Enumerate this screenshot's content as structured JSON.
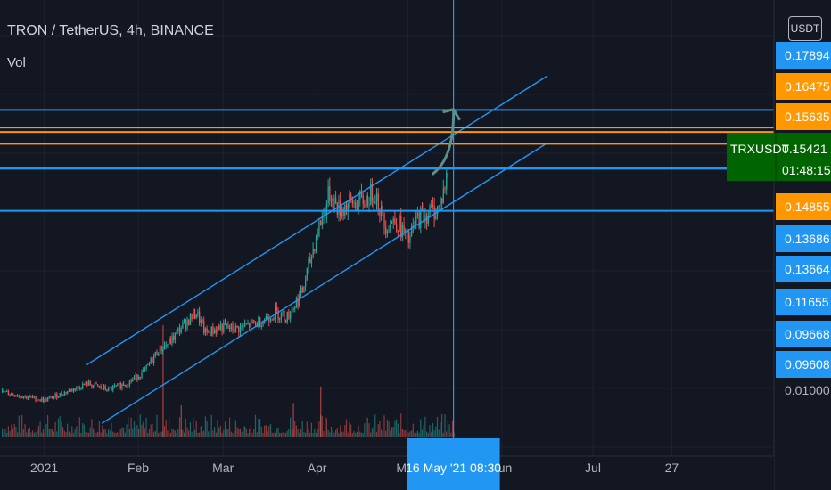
{
  "header": {
    "symbol_title": "TRON / TetherUS, 4h, BINANCE",
    "volume_label": "Vol",
    "currency_button": "USDT"
  },
  "colors": {
    "background": "#131722",
    "grid": "#1e222d",
    "up_candle": "#26a69a",
    "down_candle": "#ef5350",
    "blue_level": "#2196f3",
    "orange_level": "#ff9800",
    "channel": "#2196f3",
    "arrow": "#5f8f8a",
    "symbol_tag": "#006400"
  },
  "chart_data": {
    "type": "candlestick",
    "x_ticks": [
      "2021",
      "Feb",
      "Mar",
      "Apr",
      "May",
      "Jun",
      "Jul",
      "27"
    ],
    "y_ticks": [
      "0.17894",
      "0.16475",
      "0.15635",
      "0.14855",
      "0.13686",
      "0.13664",
      "0.11655",
      "0.09668",
      "0.09608",
      "0.01000"
    ],
    "price_badges": [
      {
        "label": "0.17894",
        "color": "blue"
      },
      {
        "label": "0.16475",
        "color": "orange"
      },
      {
        "label": "0.15635",
        "color": "orange"
      },
      {
        "label": "0.14855",
        "color": "orange"
      },
      {
        "label": "0.13686",
        "color": "blue"
      },
      {
        "label": "0.13664",
        "color": "blue"
      },
      {
        "label": "0.11655",
        "color": "blue"
      },
      {
        "label": "0.09668",
        "color": "blue"
      },
      {
        "label": "0.09608",
        "color": "blue"
      }
    ],
    "horizontal_levels": [
      {
        "price": 0.16475,
        "color": "blue"
      },
      {
        "price": 0.15635,
        "color": "orange"
      },
      {
        "price": 0.15421,
        "color": "orange"
      },
      {
        "price": 0.14855,
        "color": "orange"
      },
      {
        "price": 0.13686,
        "color": "blue"
      },
      {
        "price": 0.13664,
        "color": "blue"
      },
      {
        "price": 0.11655,
        "color": "blue"
      }
    ],
    "channel_lines": [
      {
        "start": [
          "2021-01-15",
          0.043
        ],
        "end": [
          "2021-06-16",
          0.181
        ]
      },
      {
        "start": [
          "2021-01-20",
          0.015
        ],
        "end": [
          "2021-06-16",
          0.149
        ]
      }
    ],
    "projection_arrow": {
      "from": [
        "2021-05-09",
        0.134
      ],
      "to": [
        "2021-05-16",
        0.165
      ]
    },
    "current_price": {
      "symbol": "TRXUSDT",
      "price": "0.15421",
      "countdown": "01:48:15"
    },
    "crosshair": {
      "date": "2021-05-16",
      "label": "16 May '21  08:30"
    },
    "price_path": [
      [
        "2020-12-18",
        0.03
      ],
      [
        "2020-12-25",
        0.028
      ],
      [
        "2021-01-01",
        0.026
      ],
      [
        "2021-01-08",
        0.03
      ],
      [
        "2021-01-15",
        0.034
      ],
      [
        "2021-01-22",
        0.031
      ],
      [
        "2021-01-29",
        0.035
      ],
      [
        "2021-02-03",
        0.04
      ],
      [
        "2021-02-07",
        0.049
      ],
      [
        "2021-02-12",
        0.055
      ],
      [
        "2021-02-15",
        0.061
      ],
      [
        "2021-02-20",
        0.068
      ],
      [
        "2021-02-23",
        0.058
      ],
      [
        "2021-02-28",
        0.061
      ],
      [
        "2021-03-05",
        0.06
      ],
      [
        "2021-03-12",
        0.063
      ],
      [
        "2021-03-18",
        0.068
      ],
      [
        "2021-03-22",
        0.066
      ],
      [
        "2021-03-27",
        0.078
      ],
      [
        "2021-04-01",
        0.107
      ],
      [
        "2021-04-05",
        0.125
      ],
      [
        "2021-04-08",
        0.117
      ],
      [
        "2021-04-12",
        0.12
      ],
      [
        "2021-04-16",
        0.121
      ],
      [
        "2021-04-20",
        0.126
      ],
      [
        "2021-04-23",
        0.11
      ],
      [
        "2021-04-27",
        0.112
      ],
      [
        "2021-05-01",
        0.102
      ],
      [
        "2021-05-04",
        0.113
      ],
      [
        "2021-05-08",
        0.116
      ],
      [
        "2021-05-11",
        0.118
      ],
      [
        "2021-05-14",
        0.134
      ]
    ],
    "volume_spikes": [
      {
        "date": "2021-02-09",
        "value": 1.0
      },
      {
        "date": "2021-04-02",
        "value": 0.45
      },
      {
        "date": "2021-03-24",
        "value": 0.3
      },
      {
        "date": "2021-02-15",
        "value": 0.28
      }
    ]
  }
}
